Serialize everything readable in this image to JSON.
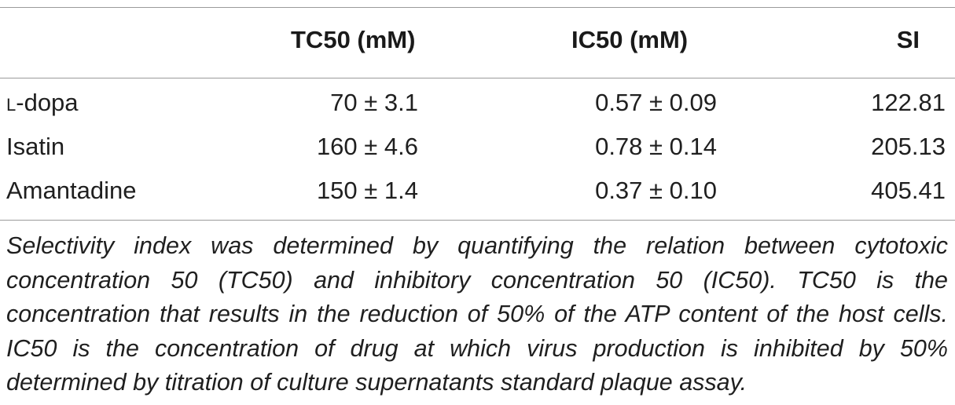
{
  "table": {
    "headers": [
      "",
      "TC50 (mM)",
      "IC50 (mM)",
      "SI"
    ],
    "rows": [
      {
        "compound_prefix": "l",
        "compound_rest": "-dopa",
        "tc50": "70 ± 3.1",
        "ic50": "0.57 ± 0.09",
        "si": "122.81"
      },
      {
        "compound_prefix": "",
        "compound_rest": "Isatin",
        "tc50": "160 ± 4.6",
        "ic50": "0.78 ± 0.14",
        "si": "205.13"
      },
      {
        "compound_prefix": "",
        "compound_rest": "Amantadine",
        "tc50": "150 ± 1.4",
        "ic50": "0.37 ± 0.10",
        "si": "405.41"
      }
    ]
  },
  "footnote": "Selectivity index was determined by quantifying the relation between cytotoxic concentration 50 (TC50) and inhibitory concentration 50 (IC50). TC50 is the concentration that results in the reduction of 50% of the ATP content of the host cells. IC50 is the concentration of drug at which virus production is inhibited by 50% determined by titration of culture supernatants standard plaque assay."
}
